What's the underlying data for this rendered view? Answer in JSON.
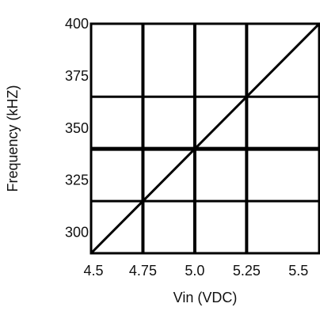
{
  "chart_data": {
    "type": "line",
    "xlabel": "Vin (VDC)",
    "ylabel": "Frequency (kHZ)",
    "xlim": [
      4.5,
      5.6
    ],
    "ylim": [
      290,
      400
    ],
    "x_ticks": [
      4.5,
      4.75,
      5.0,
      5.25,
      5.5
    ],
    "x_tick_labels": [
      "4.5",
      "4.75",
      "5.0",
      "5.25",
      "5.5"
    ],
    "y_ticks": [
      300,
      325,
      350,
      375,
      400
    ],
    "y_tick_labels": [
      "300",
      "325",
      "350",
      "375",
      "400"
    ],
    "x_gridlines": [
      4.75,
      5.0,
      5.25
    ],
    "y_gridlines": [
      315,
      340,
      365
    ],
    "grid": true,
    "legend": "none",
    "series": [
      {
        "x": [
          4.5,
          5.6
        ],
        "y": [
          290,
          400
        ]
      }
    ],
    "colors": {
      "line": "#000000",
      "frame": "#000000",
      "background": "#ffffff"
    }
  }
}
